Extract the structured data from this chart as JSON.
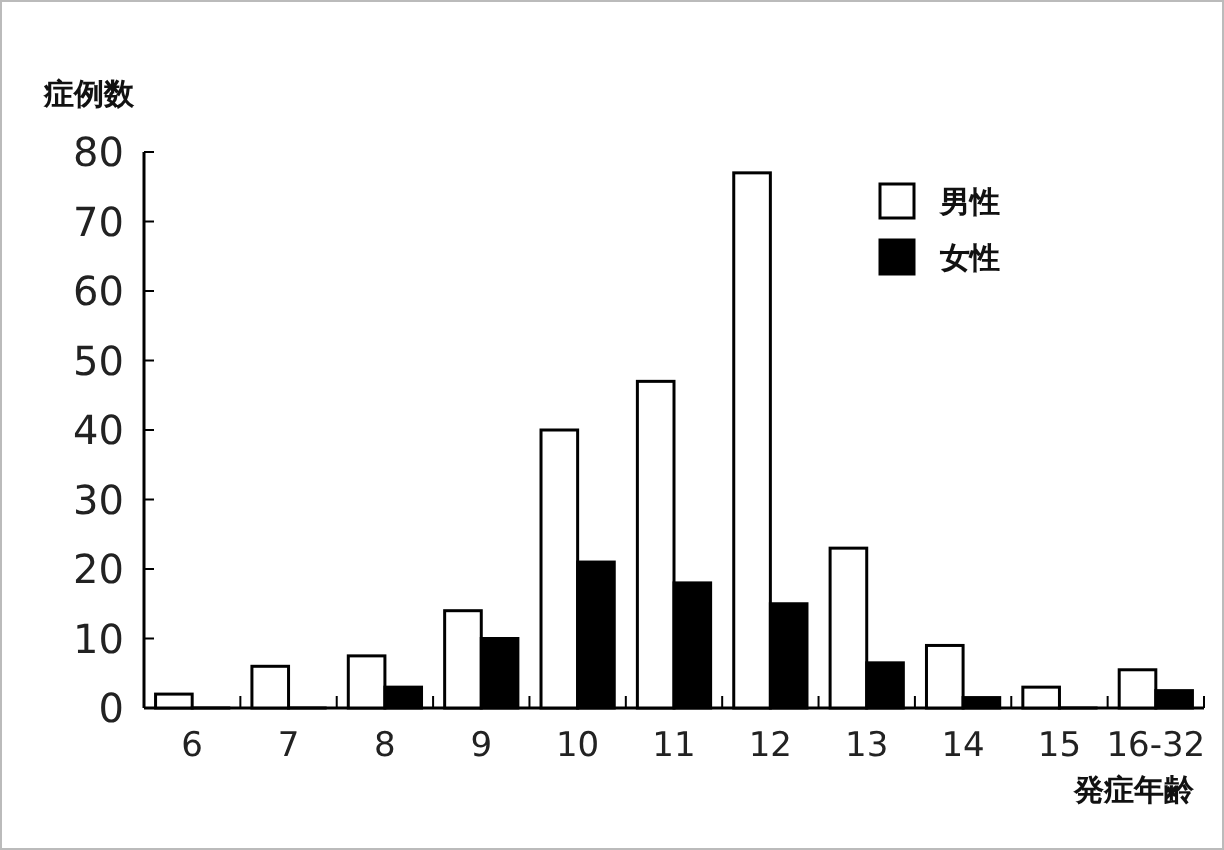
{
  "chart_data": {
    "type": "bar",
    "ylabel": "症例数",
    "xlabel": "発症年齢",
    "categories": [
      "6",
      "7",
      "8",
      "9",
      "10",
      "11",
      "12",
      "13",
      "14",
      "15",
      "16-32"
    ],
    "series": [
      {
        "name": "男性",
        "color": "#ffffff",
        "values": [
          2,
          6,
          7.5,
          14,
          40,
          47,
          77,
          23,
          9,
          3,
          5.5
        ]
      },
      {
        "name": "女性",
        "color": "#000000",
        "values": [
          0,
          0,
          3,
          10,
          21,
          18,
          15,
          6.5,
          1.5,
          0,
          2.5
        ]
      }
    ],
    "ylim": [
      0,
      80
    ],
    "yticks": [
      0,
      10,
      20,
      30,
      40,
      50,
      60,
      70,
      80
    ],
    "legend": "top right"
  }
}
